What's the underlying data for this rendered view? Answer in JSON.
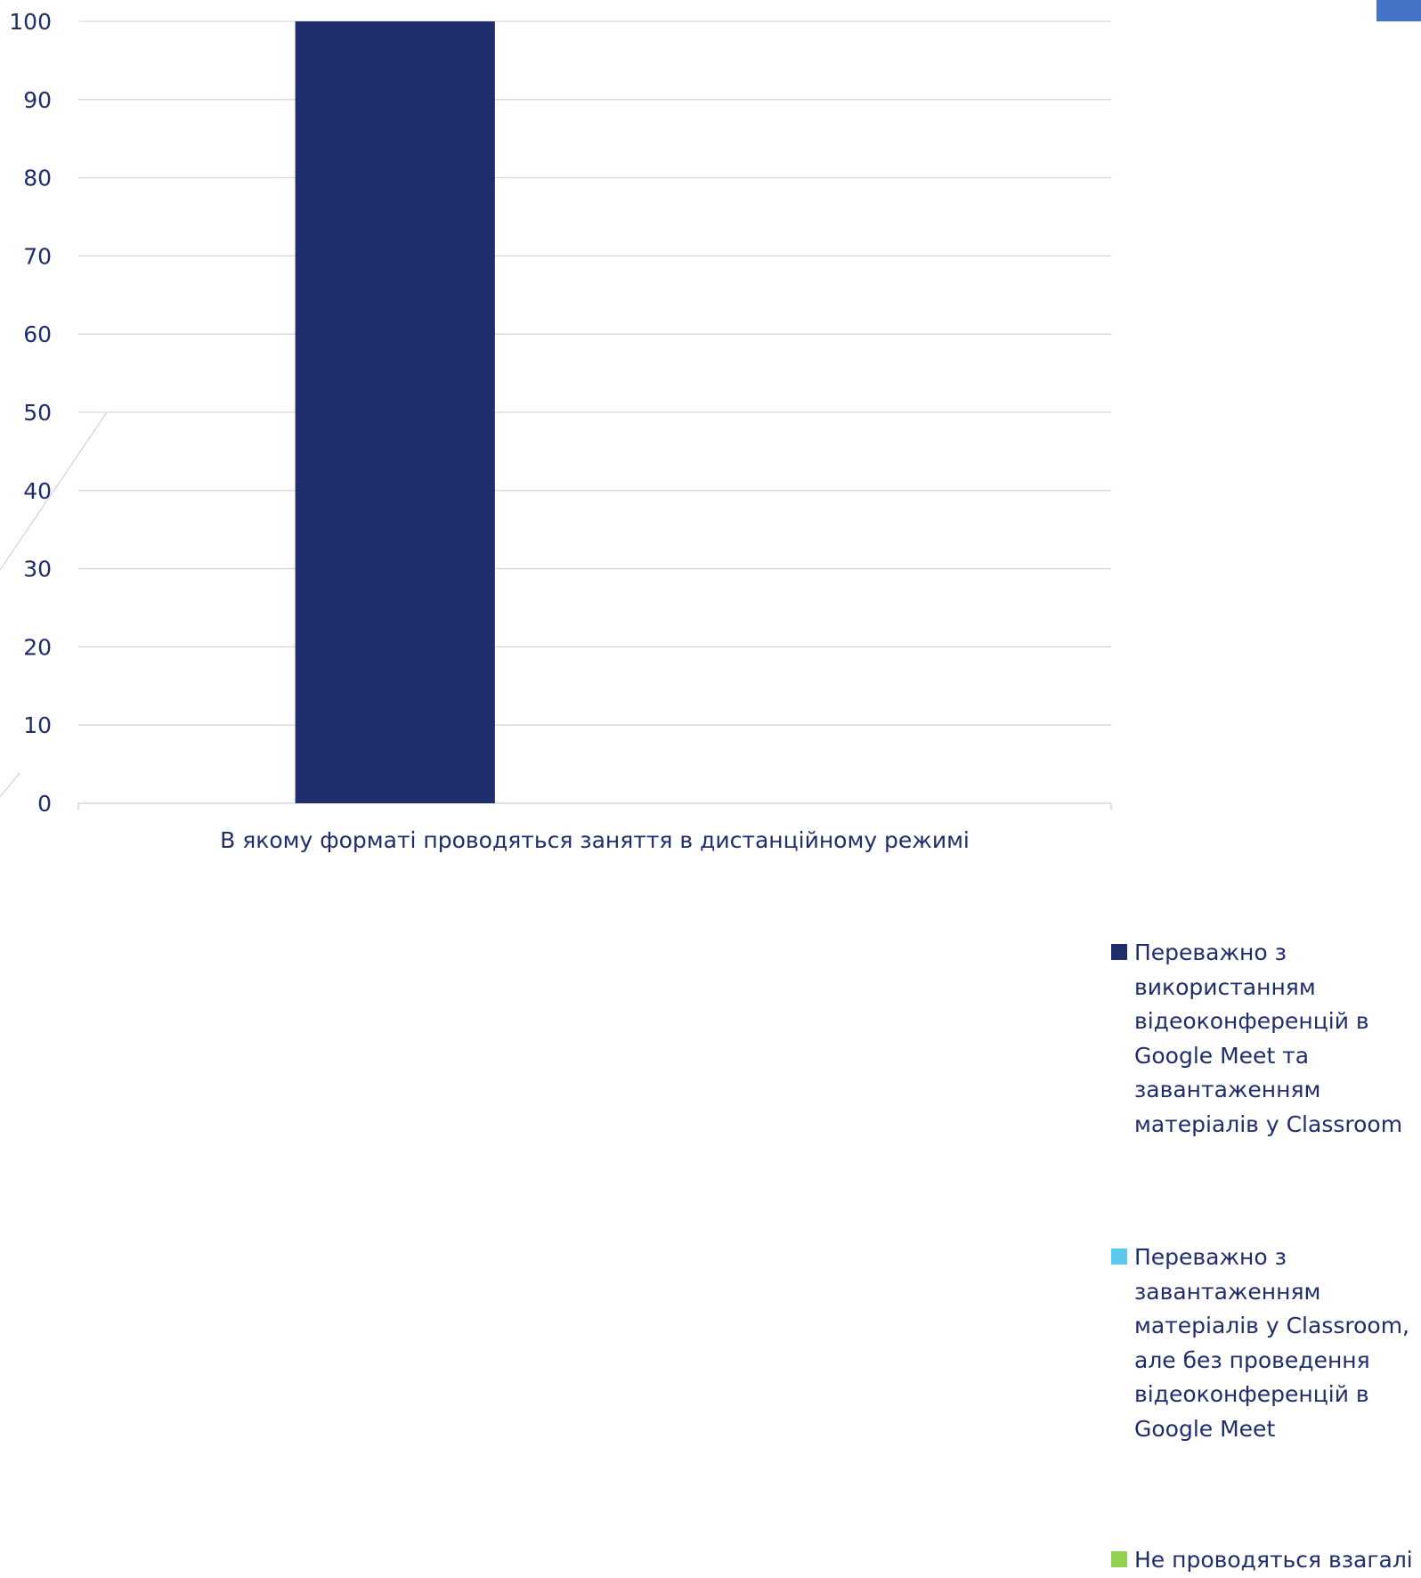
{
  "colors": {
    "axis_text": "#1F2E6B",
    "gridline": "#D4D6E8",
    "corner_accent": "#4472C4",
    "diagonal_lines": "#C9CBD6"
  },
  "chart_data": {
    "type": "bar",
    "title": "",
    "xlabel": "",
    "ylabel": "",
    "ylim": [
      0,
      100
    ],
    "yticks": [
      0,
      10,
      20,
      30,
      40,
      50,
      60,
      70,
      80,
      90,
      100
    ],
    "categories": [
      "В якому форматі проводяться заняття в дистанційному режимі"
    ],
    "grid": true,
    "legend_position": "right",
    "series": [
      {
        "name": "Переважно з використанням відеоконференцій в Google Meet та завантаженням матеріалів у Classroom",
        "legend_lines": [
          "Переважно з",
          "використанням",
          "відеоконференцій в",
          "Google Meet та",
          "завантаженням",
          "матеріалів у Classroom"
        ],
        "color": "#1F2E6B",
        "values": [
          100
        ]
      },
      {
        "name": "Переважно з завантаженням матеріалів у Classroom, але без проведення відеоконференцій в Google Meet",
        "legend_lines": [
          "Переважно з",
          "завантаженням",
          "матеріалів у Classroom,",
          "але без проведення",
          "відеоконференцій в",
          "Google Meet"
        ],
        "color": "#5BC8EE",
        "values": [
          0
        ]
      },
      {
        "name": "Не проводяться взагалі",
        "legend_lines": [
          "Не проводяться взагалі"
        ],
        "color": "#92D050",
        "values": [
          0
        ]
      }
    ]
  }
}
